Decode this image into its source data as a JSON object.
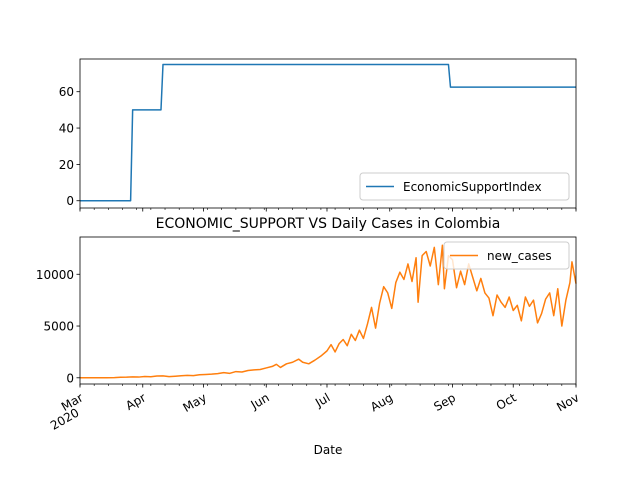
{
  "chart_data": [
    {
      "type": "line",
      "title": "",
      "xlabel": "",
      "ylabel": "",
      "x_date_range": [
        "2020-03-01",
        "2020-11-01"
      ],
      "ylim": [
        -4,
        78
      ],
      "yticks": [
        0,
        20,
        40,
        60
      ],
      "legend": "bottom-right",
      "grid": false,
      "series": [
        {
          "name": "EconomicSupportIndex",
          "color": "#1f77b4",
          "points": [
            [
              "2020-03-01",
              0
            ],
            [
              "2020-03-26",
              0
            ],
            [
              "2020-03-27",
              50
            ],
            [
              "2020-04-10",
              50
            ],
            [
              "2020-04-11",
              75
            ],
            [
              "2020-08-30",
              75
            ],
            [
              "2020-08-31",
              62.5
            ],
            [
              "2020-11-01",
              62.5
            ]
          ]
        }
      ]
    },
    {
      "type": "line",
      "title": "ECONOMIC_SUPPORT VS Daily Cases in Colombia",
      "xlabel": "Date",
      "ylabel": "",
      "x_date_range": [
        "2020-03-01",
        "2020-11-01"
      ],
      "xtick_labels": [
        {
          "date": "2020-03-01",
          "label": "Mar",
          "sublabel": "2020"
        },
        {
          "date": "2020-04-01",
          "label": "Apr"
        },
        {
          "date": "2020-05-01",
          "label": "May"
        },
        {
          "date": "2020-06-01",
          "label": "Jun"
        },
        {
          "date": "2020-07-01",
          "label": "Jul"
        },
        {
          "date": "2020-08-01",
          "label": "Aug"
        },
        {
          "date": "2020-09-01",
          "label": "Sep"
        },
        {
          "date": "2020-10-01",
          "label": "Oct"
        },
        {
          "date": "2020-11-01",
          "label": "Nov"
        }
      ],
      "ylim": [
        -600,
        13600
      ],
      "yticks": [
        0,
        5000,
        10000
      ],
      "legend": "top-right",
      "grid": false,
      "series": [
        {
          "name": "new_cases",
          "color": "#ff7f0e",
          "points": [
            [
              "2020-03-01",
              0
            ],
            [
              "2020-03-06",
              1
            ],
            [
              "2020-03-10",
              3
            ],
            [
              "2020-03-14",
              10
            ],
            [
              "2020-03-18",
              20
            ],
            [
              "2020-03-21",
              50
            ],
            [
              "2020-03-24",
              60
            ],
            [
              "2020-03-27",
              90
            ],
            [
              "2020-03-30",
              70
            ],
            [
              "2020-04-02",
              120
            ],
            [
              "2020-04-05",
              100
            ],
            [
              "2020-04-08",
              170
            ],
            [
              "2020-04-11",
              180
            ],
            [
              "2020-04-14",
              110
            ],
            [
              "2020-04-17",
              150
            ],
            [
              "2020-04-20",
              200
            ],
            [
              "2020-04-23",
              230
            ],
            [
              "2020-04-26",
              210
            ],
            [
              "2020-04-29",
              290
            ],
            [
              "2020-05-02",
              320
            ],
            [
              "2020-05-05",
              350
            ],
            [
              "2020-05-08",
              400
            ],
            [
              "2020-05-11",
              500
            ],
            [
              "2020-05-14",
              430
            ],
            [
              "2020-05-17",
              600
            ],
            [
              "2020-05-20",
              560
            ],
            [
              "2020-05-23",
              700
            ],
            [
              "2020-05-26",
              760
            ],
            [
              "2020-05-29",
              800
            ],
            [
              "2020-06-01",
              950
            ],
            [
              "2020-06-04",
              1100
            ],
            [
              "2020-06-06",
              1300
            ],
            [
              "2020-06-08",
              1000
            ],
            [
              "2020-06-11",
              1350
            ],
            [
              "2020-06-14",
              1500
            ],
            [
              "2020-06-17",
              1800
            ],
            [
              "2020-06-19",
              1500
            ],
            [
              "2020-06-22",
              1350
            ],
            [
              "2020-06-25",
              1700
            ],
            [
              "2020-06-28",
              2100
            ],
            [
              "2020-07-01",
              2600
            ],
            [
              "2020-07-03",
              3200
            ],
            [
              "2020-07-05",
              2500
            ],
            [
              "2020-07-07",
              3300
            ],
            [
              "2020-07-09",
              3700
            ],
            [
              "2020-07-11",
              3100
            ],
            [
              "2020-07-13",
              4200
            ],
            [
              "2020-07-15",
              3600
            ],
            [
              "2020-07-17",
              4600
            ],
            [
              "2020-07-19",
              3800
            ],
            [
              "2020-07-21",
              5200
            ],
            [
              "2020-07-23",
              6800
            ],
            [
              "2020-07-25",
              4800
            ],
            [
              "2020-07-27",
              7200
            ],
            [
              "2020-07-29",
              8800
            ],
            [
              "2020-07-31",
              8200
            ],
            [
              "2020-08-02",
              6700
            ],
            [
              "2020-08-04",
              9200
            ],
            [
              "2020-08-06",
              10200
            ],
            [
              "2020-08-08",
              9500
            ],
            [
              "2020-08-10",
              11000
            ],
            [
              "2020-08-12",
              9300
            ],
            [
              "2020-08-14",
              11600
            ],
            [
              "2020-08-15",
              7300
            ],
            [
              "2020-08-17",
              11800
            ],
            [
              "2020-08-19",
              12200
            ],
            [
              "2020-08-21",
              10800
            ],
            [
              "2020-08-23",
              12600
            ],
            [
              "2020-08-25",
              9000
            ],
            [
              "2020-08-27",
              12800
            ],
            [
              "2020-08-28",
              8600
            ],
            [
              "2020-08-30",
              11800
            ],
            [
              "2020-09-01",
              11400
            ],
            [
              "2020-09-03",
              8700
            ],
            [
              "2020-09-05",
              10300
            ],
            [
              "2020-09-07",
              9000
            ],
            [
              "2020-09-09",
              11000
            ],
            [
              "2020-09-11",
              9700
            ],
            [
              "2020-09-13",
              8400
            ],
            [
              "2020-09-15",
              9600
            ],
            [
              "2020-09-17",
              8200
            ],
            [
              "2020-09-19",
              7700
            ],
            [
              "2020-09-21",
              6000
            ],
            [
              "2020-09-23",
              8000
            ],
            [
              "2020-09-25",
              7300
            ],
            [
              "2020-09-27",
              6800
            ],
            [
              "2020-09-29",
              7800
            ],
            [
              "2020-10-01",
              6500
            ],
            [
              "2020-10-03",
              7000
            ],
            [
              "2020-10-05",
              5500
            ],
            [
              "2020-10-07",
              7800
            ],
            [
              "2020-10-09",
              6900
            ],
            [
              "2020-10-11",
              7500
            ],
            [
              "2020-10-13",
              5300
            ],
            [
              "2020-10-15",
              6200
            ],
            [
              "2020-10-17",
              7600
            ],
            [
              "2020-10-19",
              8200
            ],
            [
              "2020-10-21",
              6000
            ],
            [
              "2020-10-23",
              8600
            ],
            [
              "2020-10-25",
              5000
            ],
            [
              "2020-10-27",
              7500
            ],
            [
              "2020-10-29",
              9200
            ],
            [
              "2020-10-30",
              11200
            ],
            [
              "2020-11-01",
              9100
            ]
          ]
        }
      ]
    }
  ]
}
